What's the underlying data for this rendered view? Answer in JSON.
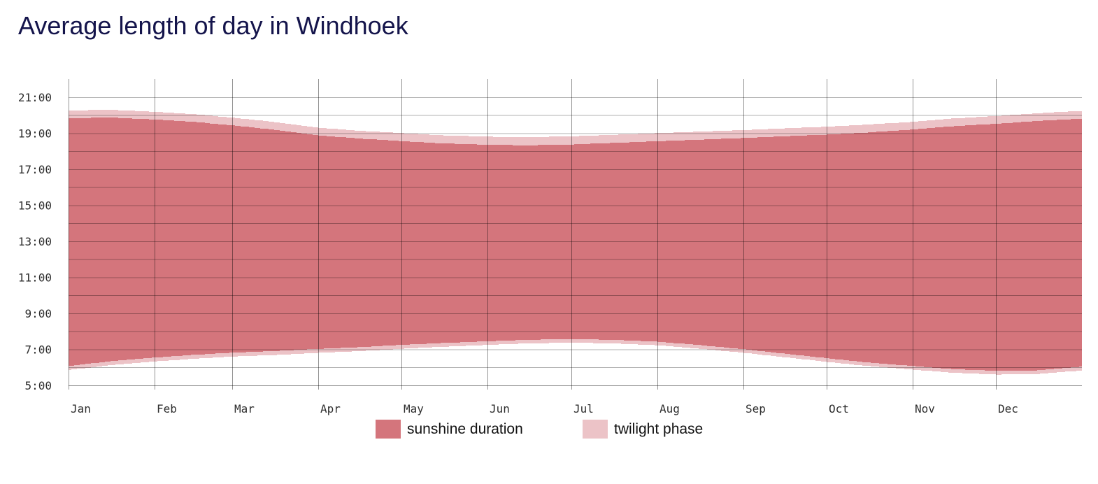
{
  "title": "Average length of day in Windhoek",
  "legend": {
    "items": [
      {
        "id": "sunshine",
        "label": "sunshine duration",
        "color": "#d4757c"
      },
      {
        "id": "twilight",
        "label": "twilight phase",
        "color": "#ecc3c7"
      }
    ]
  },
  "chart_data": {
    "type": "area",
    "title": "Average length of day in Windhoek",
    "x_tick_labels": [
      "Jan",
      "Feb",
      "Mar",
      "Apr",
      "May",
      "Jun",
      "Jul",
      "Aug",
      "Sep",
      "Oct",
      "Nov",
      "Dec"
    ],
    "month_start_days": [
      0,
      31,
      59,
      90,
      120,
      151,
      181,
      212,
      243,
      273,
      304,
      334
    ],
    "days_in_year": 365,
    "y_axis": {
      "unit": "time of day (hours)",
      "min_hour": 5,
      "max_hour": 22,
      "tick_hours": [
        21,
        19,
        17,
        15,
        13,
        11,
        9,
        7,
        5
      ],
      "tick_labels": [
        "21:00",
        "19:00",
        "17:00",
        "15:00",
        "13:00",
        "11:00",
        "9:00",
        "7:00",
        "5:00"
      ],
      "hour_grid": true
    },
    "anchor_days": [
      0,
      14,
      31,
      45,
      59,
      73,
      90,
      104,
      120,
      134,
      151,
      165,
      181,
      195,
      212,
      226,
      243,
      257,
      273,
      287,
      304,
      318,
      334,
      348,
      364
    ],
    "series": [
      {
        "name": "dawn (twilight start)",
        "values": [
          5.86,
          6.11,
          6.33,
          6.48,
          6.6,
          6.68,
          6.81,
          6.9,
          7.03,
          7.14,
          7.25,
          7.33,
          7.37,
          7.33,
          7.22,
          7.05,
          6.8,
          6.57,
          6.3,
          6.08,
          5.87,
          5.7,
          5.6,
          5.62,
          5.82
        ]
      },
      {
        "name": "sunrise",
        "values": [
          6.08,
          6.33,
          6.55,
          6.7,
          6.82,
          6.9,
          7.03,
          7.12,
          7.25,
          7.35,
          7.45,
          7.53,
          7.57,
          7.53,
          7.42,
          7.25,
          7.0,
          6.77,
          6.5,
          6.28,
          6.07,
          5.9,
          5.81,
          5.83,
          6.03
        ]
      },
      {
        "name": "sunset",
        "values": [
          19.82,
          19.87,
          19.75,
          19.62,
          19.42,
          19.2,
          18.87,
          18.7,
          18.55,
          18.43,
          18.35,
          18.32,
          18.37,
          18.45,
          18.55,
          18.63,
          18.73,
          18.82,
          18.92,
          19.03,
          19.2,
          19.38,
          19.52,
          19.67,
          19.8
        ]
      },
      {
        "name": "dusk (twilight end)",
        "values": [
          20.25,
          20.3,
          20.18,
          20.05,
          19.85,
          19.63,
          19.3,
          19.13,
          19.0,
          18.88,
          18.8,
          18.78,
          18.82,
          18.9,
          19.0,
          19.08,
          19.17,
          19.26,
          19.36,
          19.47,
          19.63,
          19.81,
          19.95,
          20.1,
          20.23
        ]
      }
    ],
    "colors": {
      "sunshine": "#d4757c",
      "twilight": "#ecc3c7",
      "grid": "rgba(0,0,0,0.30)",
      "grid_strong": "rgba(0,0,0,0.42)",
      "axis_line": "rgba(0,0,0,0.45)",
      "axis_text": "#2e2e2e",
      "title_text": "#14144b"
    },
    "legend_position": "bottom"
  }
}
